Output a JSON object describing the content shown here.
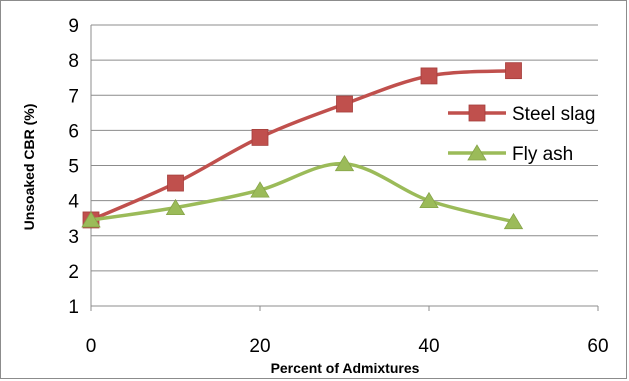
{
  "chart_data": {
    "type": "line",
    "xlabel": "Percent of Admixtures",
    "ylabel": "Unsoaked CBR (%)",
    "xlim": [
      0,
      60
    ],
    "ylim": [
      1,
      9
    ],
    "xticks": [
      "0",
      "20",
      "40",
      "60"
    ],
    "yticks": [
      "1",
      "2",
      "3",
      "4",
      "5",
      "6",
      "7",
      "8",
      "9"
    ],
    "grid": "horizontal",
    "legend_position": "right",
    "series": [
      {
        "name": "Steel slag",
        "marker": "square",
        "color": "#c0504d",
        "x": [
          0,
          10,
          20,
          30,
          40,
          50
        ],
        "y": [
          3.45,
          4.5,
          5.8,
          6.75,
          7.55,
          7.7
        ]
      },
      {
        "name": "Fly ash",
        "marker": "triangle",
        "color": "#9bbb59",
        "x": [
          0,
          10,
          20,
          30,
          40,
          50
        ],
        "y": [
          3.45,
          3.8,
          4.3,
          5.05,
          4.0,
          3.4
        ]
      }
    ]
  }
}
